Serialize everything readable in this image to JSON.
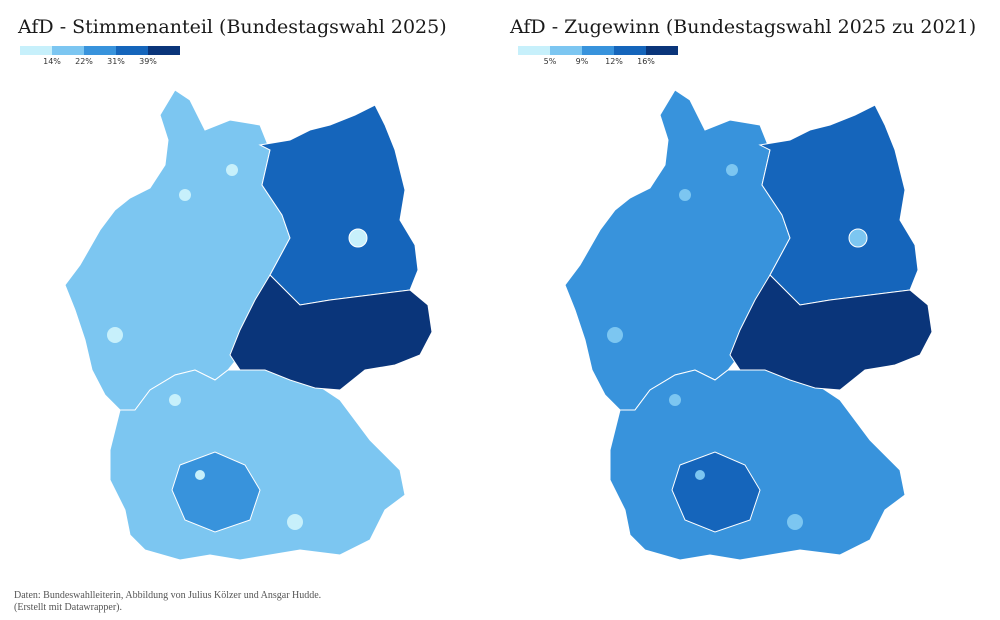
{
  "left_map": {
    "title": "AfD - Stimmenanteil (Bundestagswahl 2025)",
    "legend": {
      "colors": [
        "#c7f0fb",
        "#7cc6f1",
        "#3893dc",
        "#1565bb",
        "#0a357a"
      ],
      "tick_labels": [
        "14%",
        "22%",
        "31%",
        "39%"
      ]
    },
    "region_shades": {
      "west_north": "#7cc6f1",
      "south": "#7cc6f1",
      "east_north": "#1565bb",
      "east_core": "#0a357a",
      "city_berlin": "#c7f0fb",
      "cities": "#c7f0fb",
      "rural_south": "#3893dc"
    }
  },
  "right_map": {
    "title": "AfD - Zugewinn (Bundestagswahl 2025 zu 2021)",
    "legend": {
      "colors": [
        "#c7f0fb",
        "#7cc6f1",
        "#3893dc",
        "#1565bb",
        "#0a357a"
      ],
      "tick_labels": [
        "5%",
        "9%",
        "12%",
        "16%"
      ]
    },
    "region_shades": {
      "west_north": "#3893dc",
      "south": "#3893dc",
      "east_north": "#1565bb",
      "east_core": "#0a357a",
      "city_berlin": "#7cc6f1",
      "cities": "#7cc6f1",
      "rural_south": "#1565bb"
    }
  },
  "footer": {
    "line1": "Daten: Bundeswahlleiterin, Abbildung von Julius Kölzer und Ansgar Hudde.",
    "line2": "(Erstellt mit Datawrapper)."
  }
}
